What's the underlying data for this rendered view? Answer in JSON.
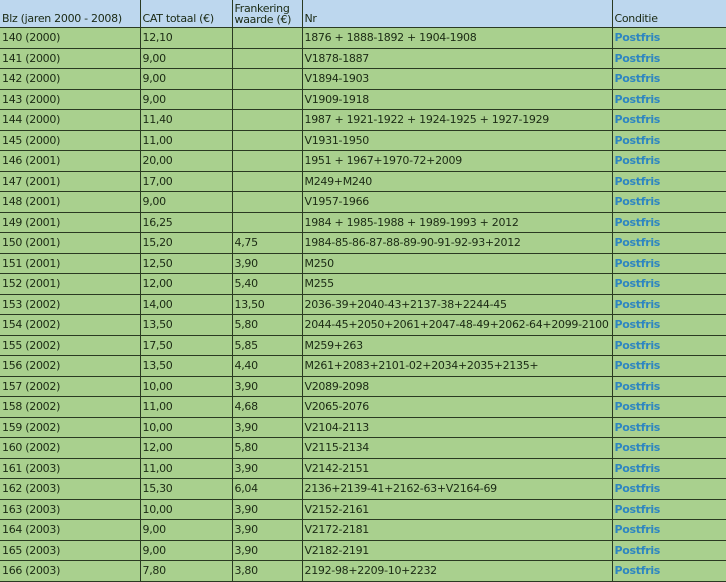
{
  "header": {
    "blz": "Blz (jaren 2000 - 2008)",
    "cat": "CAT totaal (€)",
    "frank": "Frankering waarde (€)",
    "nr": "Nr",
    "conditie": "Conditie"
  },
  "colors": {
    "header_bg": "#bdd7ee",
    "row_bg": "#a9d08e",
    "condition_text": "#2e86c1"
  },
  "rows": [
    [
      "140 (2000)",
      "12,10",
      "",
      "1876 + 1888-1892 + 1904-1908",
      "Postfris"
    ],
    [
      "141 (2000)",
      "9,00",
      "",
      "V1878-1887",
      "Postfris"
    ],
    [
      "142 (2000)",
      "9,00",
      "",
      "V1894-1903",
      "Postfris"
    ],
    [
      "143 (2000)",
      "9,00",
      "",
      "V1909-1918",
      "Postfris"
    ],
    [
      "144 (2000)",
      "11,40",
      "",
      "1987 + 1921-1922 + 1924-1925 + 1927-1929",
      "Postfris"
    ],
    [
      "145 (2000)",
      "11,00",
      "",
      "V1931-1950",
      "Postfris"
    ],
    [
      "146 (2001)",
      "20,00",
      "",
      "1951 + 1967+1970-72+2009",
      "Postfris"
    ],
    [
      "147 (2001)",
      "17,00",
      "",
      "M249+M240",
      "Postfris"
    ],
    [
      "148 (2001)",
      "9,00",
      "",
      "V1957-1966",
      "Postfris"
    ],
    [
      "149 (2001)",
      "16,25",
      "",
      "1984 + 1985-1988 + 1989-1993 + 2012",
      "Postfris"
    ],
    [
      "150 (2001)",
      "15,20",
      "4,75",
      "1984-85-86-87-88-89-90-91-92-93+2012",
      "Postfris"
    ],
    [
      "151 (2001)",
      "12,50",
      "3,90",
      "M250",
      "Postfris"
    ],
    [
      "152 (2001)",
      "12,00",
      "5,40",
      "M255",
      "Postfris"
    ],
    [
      "153 (2002)",
      "14,00",
      "13,50",
      "2036-39+2040-43+2137-38+2244-45",
      "Postfris"
    ],
    [
      "154 (2002)",
      "13,50",
      "5,80",
      "2044-45+2050+2061+2047-48-49+2062-64+2099-2100",
      "Postfris"
    ],
    [
      "155 (2002)",
      "17,50",
      "5,85",
      "M259+263",
      "Postfris"
    ],
    [
      "156 (2002)",
      "13,50",
      "4,40",
      "M261+2083+2101-02+2034+2035+2135+",
      "Postfris"
    ],
    [
      "157 (2002)",
      "10,00",
      "3,90",
      "V2089-2098",
      "Postfris"
    ],
    [
      "158 (2002)",
      "11,00",
      "4,68",
      "V2065-2076",
      "Postfris"
    ],
    [
      "159 (2002)",
      "10,00",
      "3,90",
      "V2104-2113",
      "Postfris"
    ],
    [
      "160 (2002)",
      "12,00",
      "5,80",
      "V2115-2134",
      "Postfris"
    ],
    [
      "161 (2003)",
      "11,00",
      "3,90",
      "V2142-2151",
      "Postfris"
    ],
    [
      "162 (2003)",
      "15,30",
      "6,04",
      "2136+2139-41+2162-63+V2164-69",
      "Postfris"
    ],
    [
      "163 (2003)",
      "10,00",
      "3,90",
      "V2152-2161",
      "Postfris"
    ],
    [
      "164 (2003)",
      "9,00",
      "3,90",
      "V2172-2181",
      "Postfris"
    ],
    [
      "165 (2003)",
      "9,00",
      "3,90",
      "V2182-2191",
      "Postfris"
    ],
    [
      "166 (2003)",
      "7,80",
      "3,80",
      "2192-98+2209-10+2232",
      "Postfris"
    ]
  ]
}
